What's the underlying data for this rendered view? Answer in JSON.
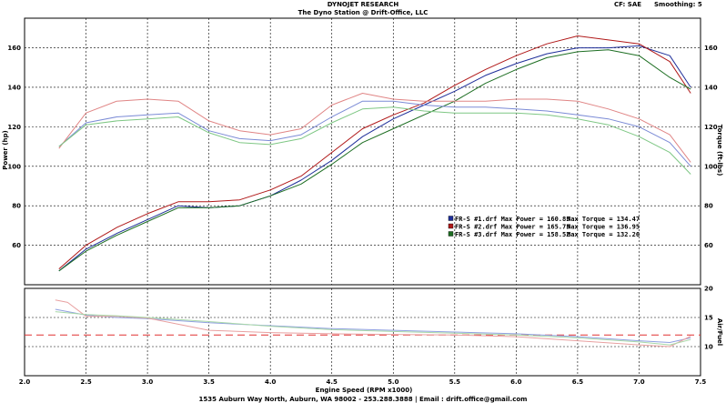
{
  "header": {
    "company": "DYNOJET RESEARCH",
    "station": "The Dyno Station @ Drift-Office, LLC",
    "cf": "CF: SAE",
    "smoothing": "Smoothing: 5"
  },
  "footer": "1535 Auburn Way North, Auburn, WA 98002 - 253.288.3888 | Email : drift.office@gmail.com",
  "chart_data": [
    {
      "type": "line",
      "xlabel": "Engine Speed (RPM x1000)",
      "ylabel": "Power (hp)",
      "y2label": "Torque (ft-lbs)",
      "xlim": [
        2.0,
        7.5
      ],
      "ylim": [
        40,
        175
      ],
      "xticks": [
        "2.0",
        "2.5",
        "3.0",
        "3.5",
        "4.0",
        "4.5",
        "5.0",
        "5.5",
        "6.0",
        "6.5",
        "7.0",
        "7.5"
      ],
      "yticks_left": [
        "60",
        "80",
        "100",
        "120",
        "140",
        "160"
      ],
      "yticks_right": [
        "60",
        "80",
        "100",
        "120",
        "140",
        "160"
      ],
      "grid": true,
      "legend": {
        "placement": "center-right",
        "entries": [
          {
            "text": "FR-S #1.drf Max Power = 160.85",
            "torque": "Max Torque = 134.47",
            "color": "#1f2f9a"
          },
          {
            "text": "FR-S #2.drf Max Power = 165.75",
            "torque": "Max Torque = 136.95",
            "color": "#b01818"
          },
          {
            "text": "FR-S #3.drf Max Power = 158.52",
            "torque": "Max Torque = 132.26",
            "color": "#1d6e22"
          }
        ]
      },
      "series": [
        {
          "name": "FR-S #1.drf",
          "kind": "power",
          "color": "#1f2f9a",
          "x": [
            2.28,
            2.5,
            2.75,
            3.0,
            3.25,
            3.5,
            3.75,
            4.0,
            4.25,
            4.5,
            4.75,
            5.0,
            5.25,
            5.5,
            5.75,
            6.0,
            6.25,
            6.5,
            6.75,
            7.0,
            7.25,
            7.42
          ],
          "y": [
            47,
            58,
            66,
            73,
            80,
            79,
            80,
            85,
            93,
            103,
            115,
            124,
            131,
            138,
            146,
            152,
            157,
            160,
            160,
            161,
            156,
            140
          ]
        },
        {
          "name": "FR-S #2.drf",
          "kind": "power",
          "color": "#b01818",
          "x": [
            2.28,
            2.5,
            2.75,
            3.0,
            3.25,
            3.5,
            3.75,
            4.0,
            4.25,
            4.5,
            4.75,
            5.0,
            5.25,
            5.5,
            5.75,
            6.0,
            6.25,
            6.5,
            6.75,
            7.0,
            7.25,
            7.42
          ],
          "y": [
            48,
            60,
            69,
            76,
            82,
            82,
            83,
            88,
            95,
            107,
            119,
            126,
            132,
            141,
            149,
            156,
            162,
            166,
            164,
            162,
            153,
            137
          ]
        },
        {
          "name": "FR-S #3.drf",
          "kind": "power",
          "color": "#1d6e22",
          "x": [
            2.28,
            2.5,
            2.75,
            3.0,
            3.25,
            3.5,
            3.75,
            4.0,
            4.25,
            4.5,
            4.75,
            5.0,
            5.25,
            5.5,
            5.75,
            6.0,
            6.25,
            6.5,
            6.75,
            7.0,
            7.25,
            7.42
          ],
          "y": [
            47,
            57,
            65,
            72,
            79,
            79,
            80,
            85,
            91,
            101,
            112,
            119,
            126,
            133,
            142,
            149,
            155,
            158,
            159,
            156,
            145,
            139
          ]
        },
        {
          "name": "FR-S #1.drf",
          "kind": "torque",
          "color": "#7b8bd6",
          "x": [
            2.28,
            2.5,
            2.75,
            3.0,
            3.25,
            3.5,
            3.75,
            4.0,
            4.25,
            4.5,
            4.75,
            5.0,
            5.25,
            5.5,
            5.75,
            6.0,
            6.25,
            6.5,
            6.75,
            7.0,
            7.25,
            7.42
          ],
          "y": [
            110,
            122,
            125,
            126,
            127,
            118,
            114,
            113,
            116,
            125,
            133,
            133,
            131,
            130,
            130,
            129,
            128,
            126,
            124,
            120,
            112,
            100
          ]
        },
        {
          "name": "FR-S #2.drf",
          "kind": "torque",
          "color": "#e08585",
          "x": [
            2.28,
            2.5,
            2.75,
            3.0,
            3.25,
            3.5,
            3.75,
            4.0,
            4.25,
            4.5,
            4.75,
            5.0,
            5.25,
            5.5,
            5.75,
            6.0,
            6.25,
            6.5,
            6.75,
            7.0,
            7.25,
            7.42
          ],
          "y": [
            109,
            127,
            133,
            134,
            133,
            123,
            118,
            116,
            119,
            131,
            137,
            134,
            133,
            133,
            133,
            134,
            134,
            133,
            129,
            124,
            116,
            102
          ]
        },
        {
          "name": "FR-S #3.drf",
          "kind": "torque",
          "color": "#7ec784",
          "x": [
            2.28,
            2.5,
            2.75,
            3.0,
            3.25,
            3.5,
            3.75,
            4.0,
            4.25,
            4.5,
            4.75,
            5.0,
            5.25,
            5.5,
            5.75,
            6.0,
            6.25,
            6.5,
            6.75,
            7.0,
            7.25,
            7.42
          ],
          "y": [
            110,
            121,
            123,
            124,
            125,
            117,
            112,
            111,
            114,
            122,
            129,
            130,
            128,
            127,
            127,
            127,
            126,
            124,
            121,
            115,
            107,
            96
          ]
        }
      ]
    },
    {
      "type": "line",
      "ylabel": "Air/Fuel",
      "xlim": [
        2.0,
        7.5
      ],
      "ylim": [
        5,
        20
      ],
      "yticks": [
        "10",
        "15",
        "20"
      ],
      "grid": true,
      "reference_line": {
        "y": 12,
        "color": "#e03030",
        "style": "dashed"
      },
      "series": [
        {
          "name": "FR-S #1.drf",
          "color": "#8fa0e0",
          "x": [
            2.25,
            2.5,
            2.75,
            3.0,
            3.5,
            4.0,
            4.5,
            5.0,
            5.5,
            6.0,
            6.5,
            7.0,
            7.25,
            7.42
          ],
          "y": [
            16.4,
            15.4,
            15.0,
            14.8,
            14.1,
            13.6,
            13.1,
            12.8,
            12.5,
            12.2,
            11.7,
            11.0,
            10.7,
            11.5
          ]
        },
        {
          "name": "FR-S #2.drf",
          "color": "#e8a0a0",
          "x": [
            2.25,
            2.35,
            2.5,
            2.75,
            3.0,
            3.5,
            4.0,
            4.5,
            5.0,
            5.5,
            6.0,
            6.5,
            7.0,
            7.25,
            7.42
          ],
          "y": [
            18.0,
            17.6,
            15.2,
            15.2,
            14.9,
            12.8,
            12.4,
            12.2,
            12.1,
            12.0,
            11.7,
            11.0,
            10.3,
            10.0,
            11.8
          ]
        },
        {
          "name": "FR-S #3.drf",
          "color": "#a8d8a8",
          "x": [
            2.25,
            2.5,
            2.75,
            3.0,
            3.5,
            4.0,
            4.5,
            5.0,
            5.5,
            6.0,
            6.5,
            7.0,
            7.25,
            7.42
          ],
          "y": [
            16.0,
            15.5,
            15.3,
            15.0,
            14.3,
            13.5,
            12.9,
            12.6,
            12.3,
            12.0,
            11.5,
            10.8,
            10.3,
            11.2
          ]
        }
      ]
    }
  ]
}
